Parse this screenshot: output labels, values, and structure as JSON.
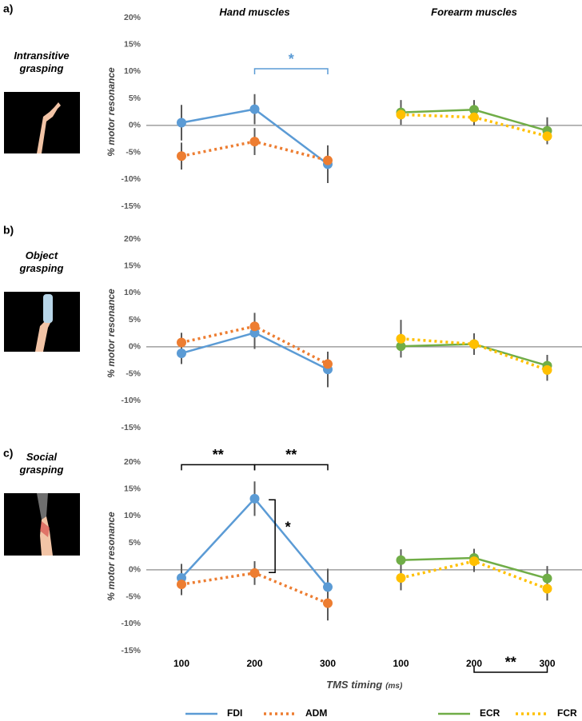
{
  "chart_data": [
    {
      "type": "line",
      "panel": "a)",
      "condition": "Intransitive grasping",
      "group_titles": [
        "Hand muscles",
        "Forearm muscles"
      ],
      "ylabel": "% motor resonance",
      "ylim": [
        -15,
        20
      ],
      "yticks": [
        {
          "value": -15,
          "label": "-15%"
        },
        {
          "value": -10,
          "label": "-10%"
        },
        {
          "value": -5,
          "label": "-5%"
        },
        {
          "value": 0,
          "label": "0%"
        },
        {
          "value": 5,
          "label": "5%"
        },
        {
          "value": 10,
          "label": "10%"
        },
        {
          "value": 15,
          "label": "15%"
        },
        {
          "value": 20,
          "label": "20%"
        }
      ],
      "series": [
        {
          "name": "FDI",
          "color": "#5b9bd5",
          "dotted": false,
          "values": [
            0.5,
            3,
            -7.2,
            null,
            null,
            null
          ],
          "errors": [
            3.3,
            2.8,
            3.5,
            null,
            null,
            null
          ]
        },
        {
          "name": "ADM",
          "color": "#ed7d31",
          "dotted": true,
          "values": [
            -5.7,
            -3,
            -6.5,
            null,
            null,
            null
          ],
          "errors": [
            2.5,
            2.5,
            2,
            null,
            null,
            null
          ]
        },
        {
          "name": "ECR",
          "color": "#70ad47",
          "dotted": false,
          "values": [
            null,
            null,
            null,
            2.4,
            2.9,
            -1
          ],
          "errors": [
            null,
            null,
            null,
            2.3,
            1.8,
            2.5
          ]
        },
        {
          "name": "FCR",
          "color": "#ffc000",
          "dotted": true,
          "values": [
            null,
            null,
            null,
            2,
            1.5,
            -2
          ],
          "errors": [
            null,
            null,
            null,
            1.5,
            1.5,
            1.5
          ]
        }
      ],
      "annotations": [
        {
          "label": "*",
          "color": "#5b9bd5",
          "span": [
            1,
            2
          ],
          "y": 10.5
        }
      ]
    },
    {
      "type": "line",
      "panel": "b)",
      "condition": "Object grasping",
      "ylabel": "% motor resonance",
      "ylim": [
        -15,
        20
      ],
      "yticks": [
        {
          "value": -15,
          "label": "-15%"
        },
        {
          "value": -10,
          "label": "-10%"
        },
        {
          "value": -5,
          "label": "-5%"
        },
        {
          "value": 0,
          "label": "0%"
        },
        {
          "value": 5,
          "label": "5%"
        },
        {
          "value": 10,
          "label": "10%"
        },
        {
          "value": 15,
          "label": "15%"
        },
        {
          "value": 20,
          "label": "20%"
        }
      ],
      "series": [
        {
          "name": "FDI",
          "color": "#5b9bd5",
          "dotted": false,
          "values": [
            -1.2,
            2.6,
            -4.2,
            null,
            null,
            null
          ],
          "errors": [
            2,
            3,
            3.3,
            null,
            null,
            null
          ]
        },
        {
          "name": "ADM",
          "color": "#ed7d31",
          "dotted": true,
          "values": [
            0.8,
            3.8,
            -3.2,
            null,
            null,
            null
          ],
          "errors": [
            1.8,
            2.5,
            1.5,
            null,
            null,
            null
          ]
        },
        {
          "name": "ECR",
          "color": "#70ad47",
          "dotted": false,
          "values": [
            null,
            null,
            null,
            0.1,
            0.5,
            -3.5
          ],
          "errors": [
            null,
            null,
            null,
            2,
            2,
            2
          ]
        },
        {
          "name": "FCR",
          "color": "#ffc000",
          "dotted": true,
          "values": [
            null,
            null,
            null,
            1.5,
            0.5,
            -4.3
          ],
          "errors": [
            null,
            null,
            null,
            3.5,
            1.5,
            2
          ]
        }
      ],
      "annotations": []
    },
    {
      "type": "line",
      "panel": "c)",
      "condition": "Social grasping",
      "ylabel": "% motor resonance",
      "ylim": [
        -15,
        20
      ],
      "yticks": [
        {
          "value": -15,
          "label": "-15%"
        },
        {
          "value": -10,
          "label": "-10%"
        },
        {
          "value": -5,
          "label": "-5%"
        },
        {
          "value": 0,
          "label": "0%"
        },
        {
          "value": 5,
          "label": "5%"
        },
        {
          "value": 10,
          "label": "10%"
        },
        {
          "value": 15,
          "label": "15%"
        },
        {
          "value": 20,
          "label": "20%"
        }
      ],
      "categories": [
        "100",
        "200",
        "300",
        "100",
        "200",
        "300"
      ],
      "xlabel": "TMS timing",
      "xlabel_unit": "(ms)",
      "series": [
        {
          "name": "FDI",
          "color": "#5b9bd5",
          "dotted": false,
          "values": [
            -1.5,
            13.2,
            -3.2,
            null,
            null,
            null
          ],
          "errors": [
            2.6,
            3.2,
            3.4,
            null,
            null,
            null
          ]
        },
        {
          "name": "ADM",
          "color": "#ed7d31",
          "dotted": true,
          "values": [
            -2.7,
            -0.6,
            -6.2,
            null,
            null,
            null
          ],
          "errors": [
            2,
            2.2,
            3.2,
            null,
            null,
            null
          ]
        },
        {
          "name": "ECR",
          "color": "#70ad47",
          "dotted": false,
          "values": [
            null,
            null,
            null,
            1.8,
            2.2,
            -1.6
          ],
          "errors": [
            null,
            null,
            null,
            2,
            1.7,
            2.3
          ]
        },
        {
          "name": "FCR",
          "color": "#ffc000",
          "dotted": true,
          "values": [
            null,
            null,
            null,
            -1.5,
            1.6,
            -3.5
          ],
          "errors": [
            null,
            null,
            null,
            2.3,
            2,
            2.2
          ]
        }
      ],
      "annotations": [
        {
          "label": "**",
          "color": "#000000",
          "span": [
            0,
            1
          ],
          "y": 19.5
        },
        {
          "label": "**",
          "color": "#000000",
          "span": [
            1,
            2
          ],
          "y": 19.5
        },
        {
          "label": "*",
          "color": "#000000",
          "x": 1.28,
          "yspan": [
            13,
            -0.5
          ]
        },
        {
          "label": "**",
          "color": "#000000",
          "span": [
            4,
            5
          ],
          "y": -19
        }
      ]
    }
  ]
}
